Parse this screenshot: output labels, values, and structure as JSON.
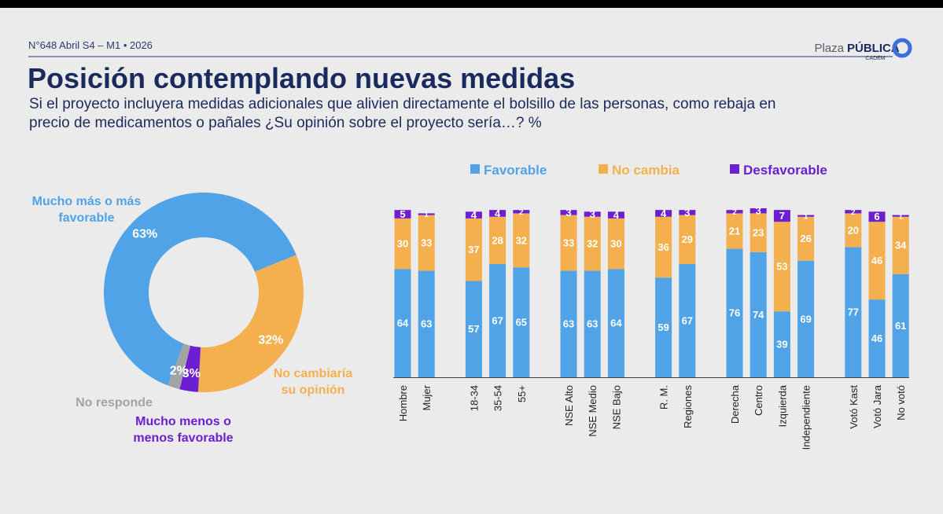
{
  "header": {
    "issue": "N°648 Abril S4 – M1 • 2026",
    "logo_plaza": "Plaza",
    "logo_publica": "PÚBLICA",
    "logo_cadem": "CADEM",
    "title": "Posición contemplando nuevas medidas",
    "subtitle": "Si el proyecto incluyera medidas adicionales que alivien directamente el bolsillo de las personas, como rebaja en precio de medicamentos o pañales ¿Su opinión sobre el proyecto sería…? %"
  },
  "chart_data": [
    {
      "type": "donut",
      "categories": [
        "Mucho más o más favorable",
        "No cambiaría su opinión",
        "Mucho menos o menos favorable",
        "No responde"
      ],
      "values": [
        63,
        32,
        3,
        2
      ],
      "value_labels": [
        "63%",
        "32%",
        "3%",
        "2%"
      ],
      "colors": [
        "#4fa3e6",
        "#f4b04f",
        "#6b1fd1",
        "#a3a3a3"
      ]
    },
    {
      "type": "stacked_bar",
      "categories": [
        "Hombre",
        "Mujer",
        "18-34",
        "35-54",
        "55+",
        "NSE Alto",
        "NSE Medio",
        "NSE Bajo",
        "R. M.",
        "Regiones",
        "Derecha",
        "Centro",
        "Izquierda",
        "Independiente",
        "Votó Kast",
        "Votó Jara",
        "No votó"
      ],
      "series": [
        {
          "name": "Favorable",
          "color": "#4fa3e6",
          "values": [
            64,
            63,
            57,
            67,
            65,
            63,
            63,
            64,
            59,
            67,
            76,
            74,
            39,
            69,
            77,
            46,
            61
          ]
        },
        {
          "name": "No cambia",
          "color": "#f4b04f",
          "values": [
            30,
            33,
            37,
            28,
            32,
            33,
            32,
            30,
            36,
            29,
            21,
            23,
            53,
            26,
            20,
            46,
            34
          ]
        },
        {
          "name": "Desfavorable",
          "color": "#6b1fd1",
          "values": [
            5,
            1,
            4,
            4,
            2,
            3,
            3,
            4,
            4,
            3,
            2,
            3,
            7,
            1,
            2,
            6,
            1
          ]
        }
      ],
      "ylim": [
        0,
        100
      ]
    }
  ]
}
